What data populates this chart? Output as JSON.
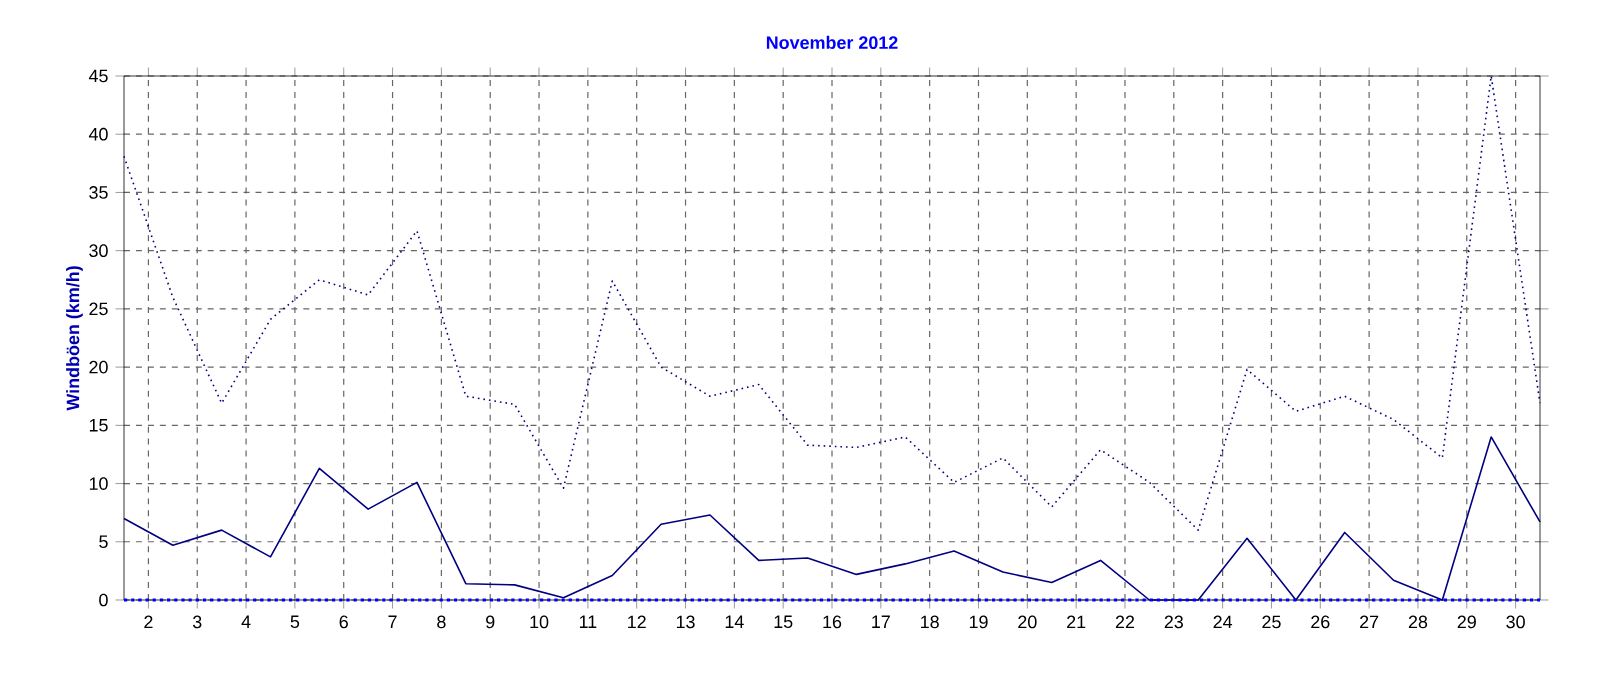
{
  "chart_data": {
    "type": "line",
    "title": "November 2012",
    "ylabel": "Windböen  (km/h)",
    "x": [
      1.5,
      2.5,
      3.5,
      4.5,
      5.5,
      6.5,
      7.5,
      8.5,
      9.5,
      10.5,
      11.5,
      12.5,
      13.5,
      14.5,
      15.5,
      16.5,
      17.5,
      18.5,
      19.5,
      20.5,
      21.5,
      22.5,
      23.5,
      24.5,
      25.5,
      26.5,
      27.5,
      28.5,
      29.5,
      30.5
    ],
    "series": [
      {
        "color": "#000080",
        "line_style": "dotted",
        "values": [
          38.1,
          26,
          16.9,
          24.1,
          27.5,
          26.2,
          31.7,
          17.5,
          16.8,
          9.6,
          27.4,
          20.0,
          17.5,
          18.5,
          13.3,
          13.1,
          14.0,
          10.1,
          12.2,
          8.0,
          12.9,
          10.1,
          6.0,
          19.8,
          16.2,
          17.5,
          15.5,
          12.2,
          45,
          16.9
        ]
      },
      {
        "color": "#000080",
        "line_style": "solid",
        "values": [
          7,
          4.7,
          6.0,
          3.7,
          11.3,
          7.8,
          10.1,
          1.4,
          1.3,
          0.2,
          2.1,
          6.5,
          7.3,
          3.4,
          3.6,
          2.2,
          3.1,
          4.2,
          2.4,
          1.5,
          3.4,
          0,
          0,
          5.3,
          0,
          5.8,
          1.7,
          0,
          14.0,
          6.7
        ]
      },
      {
        "color": "#0000ff",
        "line_style": "dotted",
        "values": [
          0,
          0,
          0,
          0,
          0,
          0,
          0,
          0,
          0,
          0,
          0,
          0,
          0,
          0,
          0,
          0,
          0,
          0,
          0,
          0,
          0,
          0,
          0,
          0,
          0,
          0,
          0,
          0,
          0,
          0
        ]
      }
    ],
    "xlim": [
      1.5,
      30.5
    ],
    "xticks": [
      2,
      3,
      4,
      5,
      6,
      7,
      8,
      9,
      10,
      11,
      12,
      13,
      14,
      15,
      16,
      17,
      18,
      19,
      20,
      21,
      22,
      23,
      24,
      25,
      26,
      27,
      28,
      29,
      30
    ],
    "ylim": [
      0,
      45
    ],
    "yticks": [
      0,
      5,
      10,
      15,
      20,
      25,
      30,
      35,
      40,
      45
    ],
    "grid": true,
    "marker": "none"
  }
}
